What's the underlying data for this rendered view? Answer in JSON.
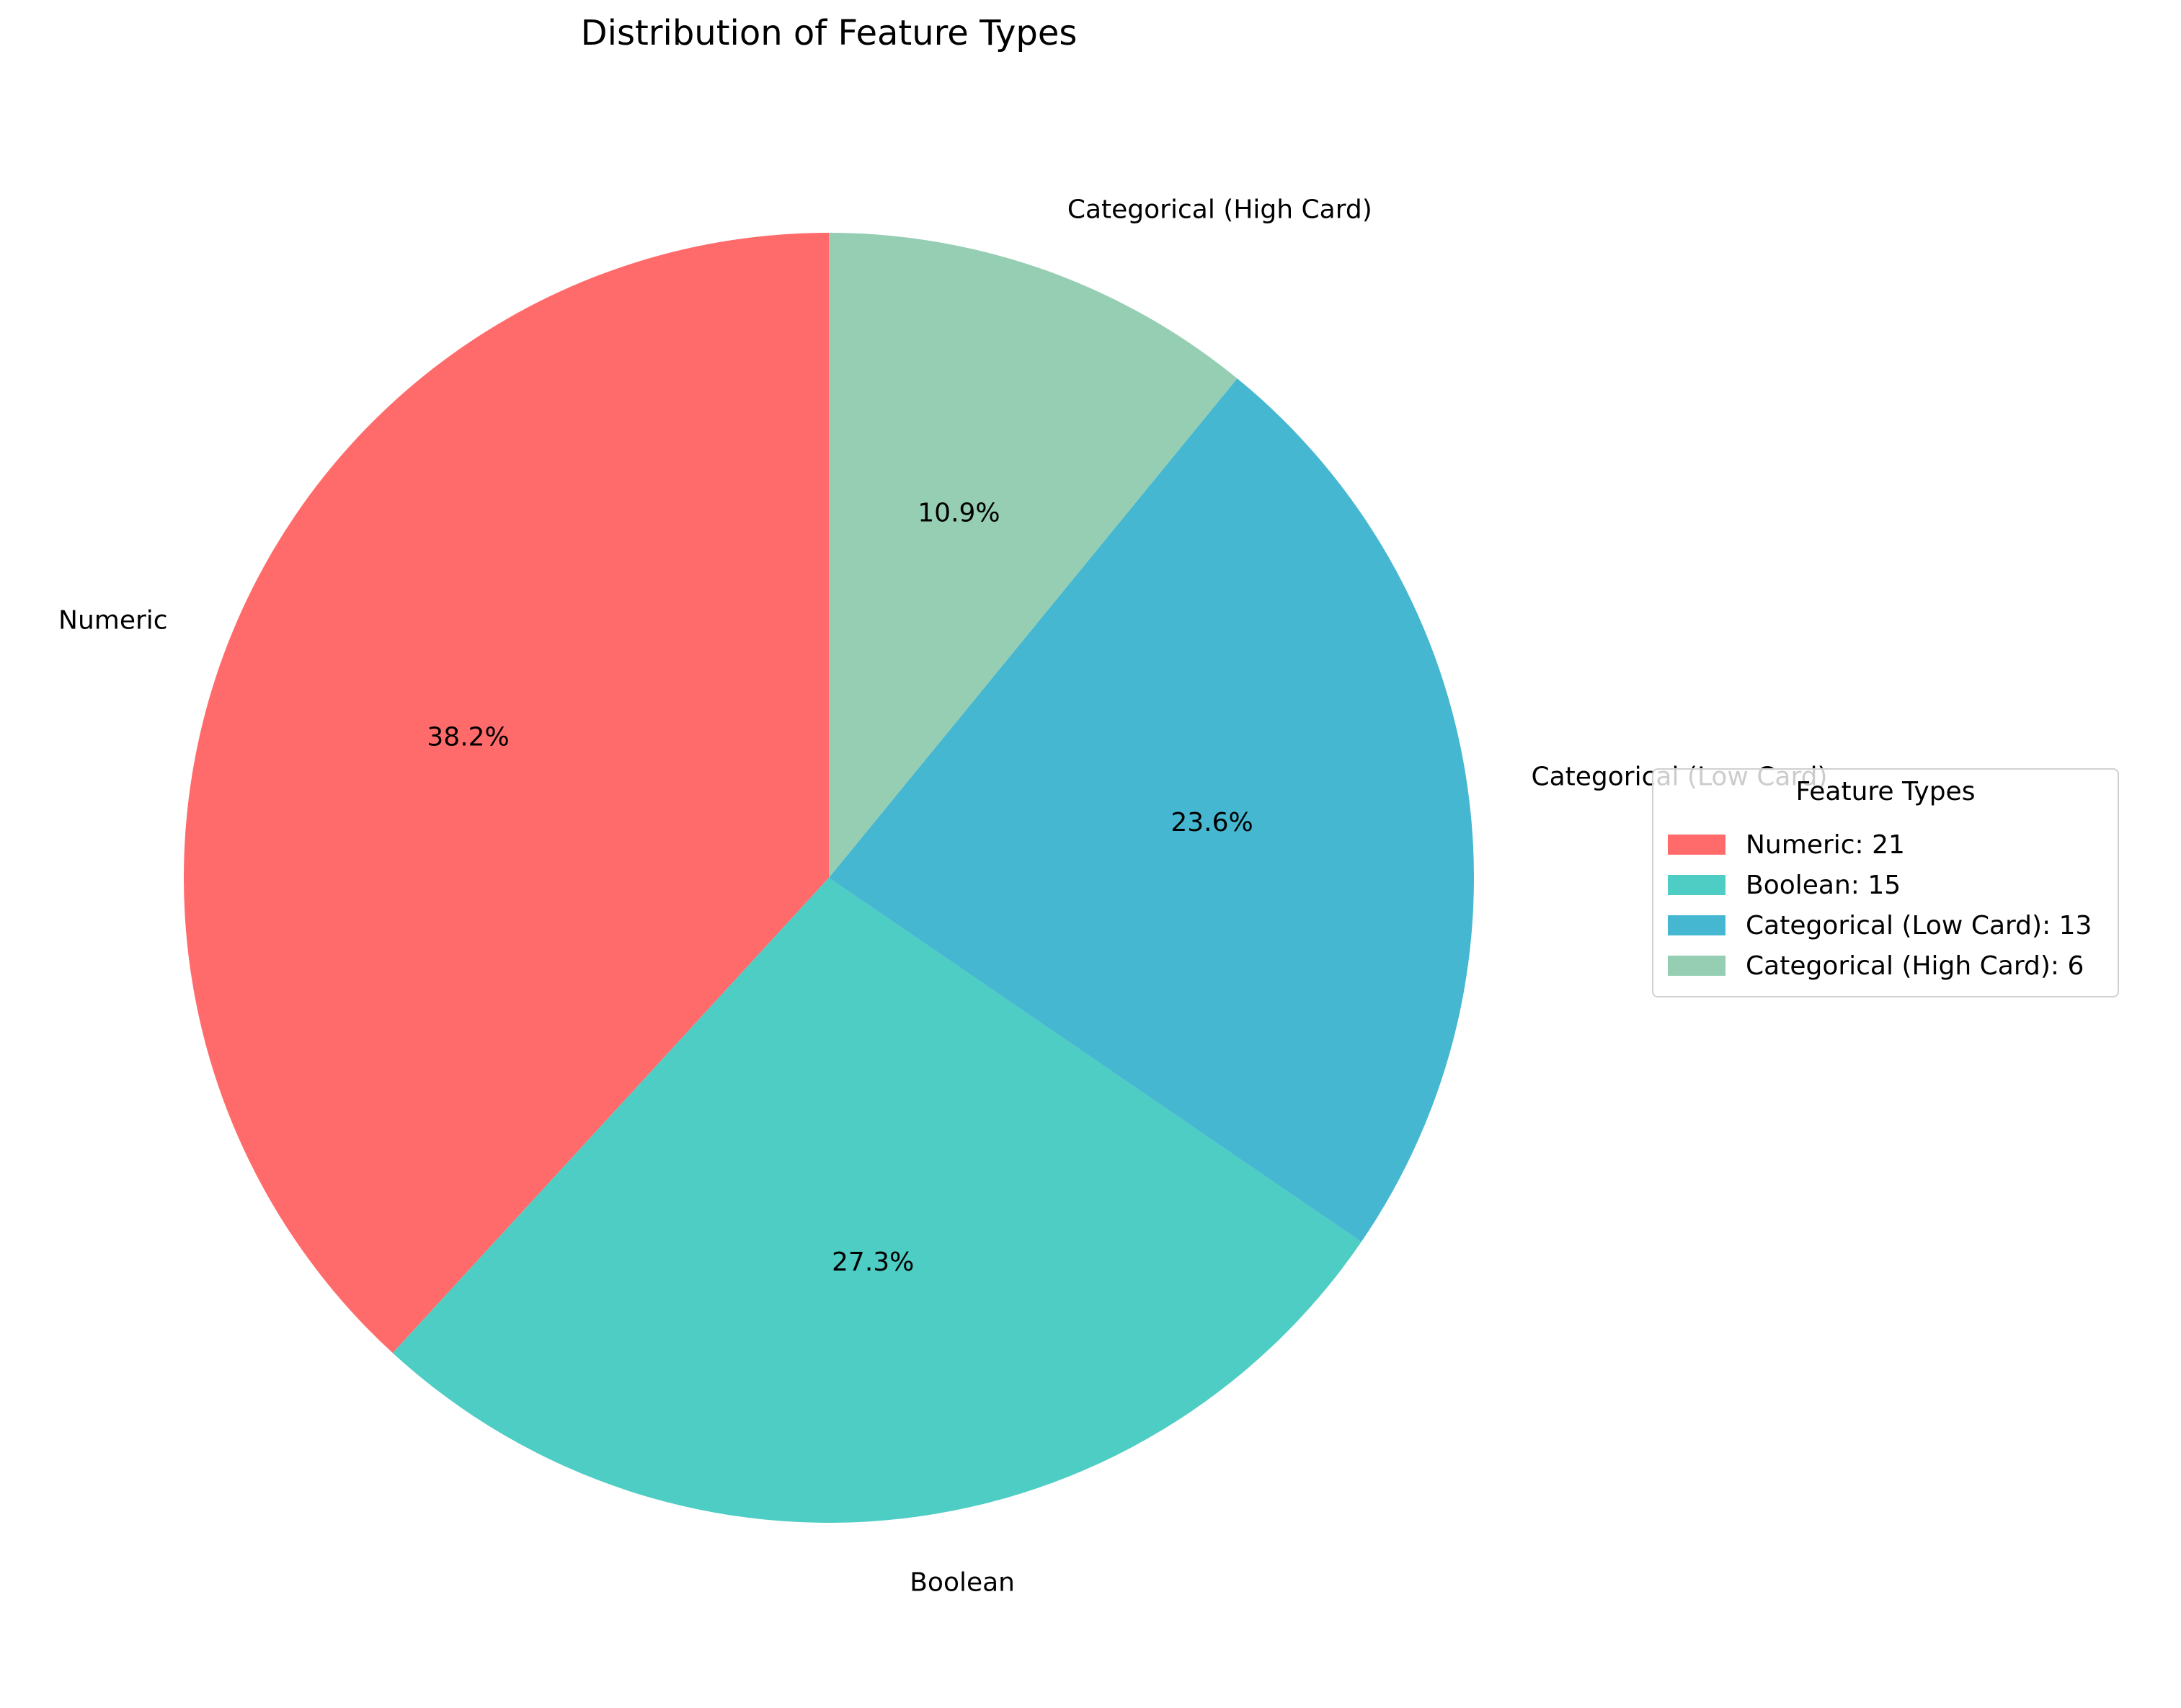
{
  "chart_data": {
    "type": "pie",
    "title": "Distribution of Feature Types",
    "categories": [
      "Numeric",
      "Boolean",
      "Categorical (Low Card)",
      "Categorical (High Card)"
    ],
    "values": [
      21,
      15,
      13,
      6
    ],
    "percent_labels": [
      "38.2%",
      "27.3%",
      "23.6%",
      "10.9%"
    ],
    "colors": [
      "#FF6B6B",
      "#4ECDC4",
      "#45B7D1",
      "#96CEB4"
    ],
    "start_angle_deg": 90,
    "direction": "counterclockwise",
    "legend": {
      "title": "Feature Types",
      "placement": "right",
      "entries": [
        "Numeric: 21",
        "Boolean: 15",
        "Categorical (Low Card): 13",
        "Categorical (High Card): 6"
      ]
    }
  }
}
